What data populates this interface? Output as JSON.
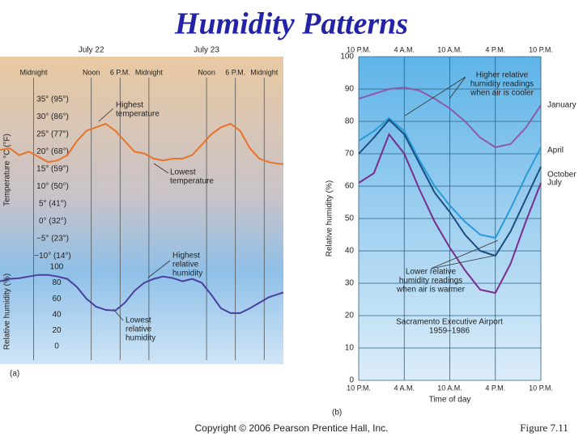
{
  "title": "Humidity Patterns",
  "copyright": "Copyright © 2006 Pearson Prentice Hall, Inc.",
  "figure": "Figure  7.11",
  "chart_data": [
    {
      "type": "line",
      "panel": "(a)",
      "ylabel": "Temperature °C (°F)",
      "dates": [
        {
          "value": 12,
          "label": "July 22"
        },
        {
          "value": 36,
          "label": "July 23"
        }
      ],
      "xlim": [
        -7,
        52
      ],
      "xticks": [
        {
          "value": 0,
          "label": "Midnight"
        },
        {
          "value": 12,
          "label": "Noon"
        },
        {
          "value": 18,
          "label": "6 P.M."
        },
        {
          "value": 24,
          "label": "Midnight"
        },
        {
          "value": 36,
          "label": "Noon"
        },
        {
          "value": 42,
          "label": "6 P.M."
        },
        {
          "value": 48,
          "label": "Midnight"
        }
      ],
      "ylim": [
        -12,
        38
      ],
      "yticks": [
        {
          "value": 35,
          "label": "35° (95°)"
        },
        {
          "value": 30,
          "label": "30° (86°)"
        },
        {
          "value": 25,
          "label": "25° (77°)"
        },
        {
          "value": 20,
          "label": "20° (68°)"
        },
        {
          "value": 15,
          "label": "15° (59°)"
        },
        {
          "value": 10,
          "label": "10° (50°)"
        },
        {
          "value": 5,
          "label": "5° (41°)"
        },
        {
          "value": 0,
          "label": "0° (32°)"
        },
        {
          "value": -5,
          "label": "−5° (23°)"
        },
        {
          "value": -10,
          "label": "−10° (14°)"
        }
      ],
      "x": [
        -7,
        -5,
        -3,
        -1,
        1,
        3,
        5,
        7,
        9,
        11,
        13,
        15,
        17,
        19,
        21,
        23,
        25,
        27,
        29,
        31,
        33,
        35,
        37,
        39,
        41,
        43,
        45,
        47,
        49,
        51,
        52
      ],
      "series": [
        {
          "color": "#e8742a",
          "values": [
            20.5,
            21,
            19,
            20,
            18.5,
            17,
            17.5,
            19,
            23,
            26,
            27,
            28,
            26,
            23,
            20,
            19.5,
            18,
            17.5,
            18,
            18,
            19,
            22,
            25,
            27,
            28,
            26,
            21,
            18,
            17,
            16.5,
            16.5
          ]
        }
      ],
      "annotations": [
        {
          "lines": [
            "Highest",
            "temperature"
          ]
        },
        {
          "lines": [
            "Lowest",
            "temperature"
          ]
        }
      ]
    },
    {
      "type": "line",
      "ylabel": "Relative humidity (%)",
      "xlim": [
        -7,
        52
      ],
      "ylim": [
        -5,
        105
      ],
      "yticks": [
        0,
        20,
        40,
        60,
        80,
        100
      ],
      "x": [
        -7,
        -5,
        -3,
        -1,
        1,
        3,
        5,
        7,
        9,
        11,
        13,
        15,
        17,
        19,
        21,
        23,
        25,
        27,
        29,
        31,
        33,
        35,
        37,
        39,
        41,
        43,
        45,
        47,
        49,
        51,
        52
      ],
      "series": [
        {
          "color": "#4a3f9f",
          "values": [
            82,
            85,
            86,
            88,
            90,
            90,
            88,
            85,
            75,
            60,
            50,
            46,
            45,
            55,
            70,
            80,
            85,
            88,
            86,
            82,
            85,
            80,
            65,
            48,
            42,
            42,
            48,
            55,
            62,
            66,
            68
          ]
        }
      ],
      "annotations": [
        {
          "lines": [
            "Highest",
            "relative",
            "humidity"
          ]
        },
        {
          "lines": [
            "Lowest",
            "relative",
            "humidity"
          ]
        }
      ]
    },
    {
      "type": "line",
      "panel": "(b)",
      "ylabel": "Relative humidity (%)",
      "xlabel": "Time of day",
      "xlim": [
        0,
        24
      ],
      "xticks": [
        {
          "value": 0,
          "label": "10 P.M."
        },
        {
          "value": 6,
          "label": "4 A.M."
        },
        {
          "value": 12,
          "label": "10 A.M."
        },
        {
          "value": 18,
          "label": "4 P.M."
        },
        {
          "value": 24,
          "label": "10 P.M."
        }
      ],
      "ylim": [
        0,
        100
      ],
      "yticks": [
        0,
        10,
        20,
        30,
        40,
        50,
        60,
        70,
        80,
        90,
        100
      ],
      "x": [
        0,
        2,
        4,
        6,
        8,
        10,
        12,
        14,
        16,
        18,
        20,
        22,
        24
      ],
      "series": [
        {
          "name": "January",
          "color": "#8e5aa8",
          "values": [
            87,
            88.5,
            90,
            90.5,
            89.5,
            87,
            84,
            80,
            75,
            72,
            73,
            78,
            85
          ]
        },
        {
          "name": "April",
          "color": "#2a9ad8",
          "values": [
            74,
            77,
            81,
            77,
            68,
            60,
            54,
            49,
            45,
            44,
            53,
            63,
            72
          ]
        },
        {
          "name": "October",
          "color": "#1a4d80",
          "values": [
            70,
            75,
            80.5,
            76,
            67,
            58,
            52,
            45,
            40,
            38.5,
            46,
            56,
            66
          ]
        },
        {
          "name": "July",
          "color": "#7a2d8f",
          "values": [
            61,
            64,
            76,
            70,
            59,
            49,
            41,
            34,
            28,
            27,
            36,
            49,
            61
          ]
        }
      ],
      "annotations": [
        {
          "lines": [
            "Higher relative",
            "humidity readings",
            "when air is cooler"
          ]
        },
        {
          "lines": [
            "Lower relative",
            "humidity readings",
            "when air is warmer"
          ]
        },
        {
          "lines": [
            "Sacramento Executive Airport",
            "1959–1986"
          ]
        }
      ]
    }
  ]
}
